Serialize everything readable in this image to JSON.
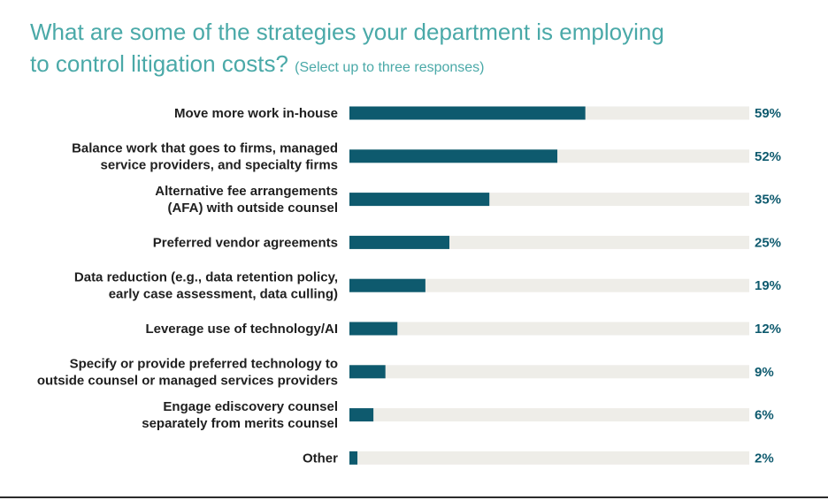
{
  "title_line1": "What are some of the strategies your department is employing",
  "title_line2": "to control litigation costs?",
  "subtitle": "(Select up to three responses)",
  "colors": {
    "title": "#4aa9a8",
    "bar": "#0e5a6e",
    "track": "#eeede8",
    "value_text": "#0e5a6e"
  },
  "chart_data": {
    "type": "bar",
    "orientation": "horizontal",
    "categories": [
      [
        "Move more work in-house"
      ],
      [
        "Balance work that goes to firms, managed",
        "service providers, and specialty firms"
      ],
      [
        "Alternative fee arrangements",
        "(AFA) with outside counsel"
      ],
      [
        "Preferred vendor agreements"
      ],
      [
        "Data reduction (e.g., data retention policy,",
        "early case assessment, data culling)"
      ],
      [
        "Leverage use of technology/AI"
      ],
      [
        "Specify or provide preferred technology to",
        "outside counsel or managed services providers"
      ],
      [
        "Engage ediscovery counsel",
        "separately from merits counsel"
      ],
      [
        "Other"
      ]
    ],
    "values": [
      59,
      52,
      35,
      25,
      19,
      12,
      9,
      6,
      2
    ],
    "value_labels": [
      "59%",
      "52%",
      "35%",
      "25%",
      "19%",
      "12%",
      "9%",
      "6%",
      "2%"
    ],
    "xlim": [
      0,
      100
    ],
    "grid": false,
    "legend": "none"
  }
}
